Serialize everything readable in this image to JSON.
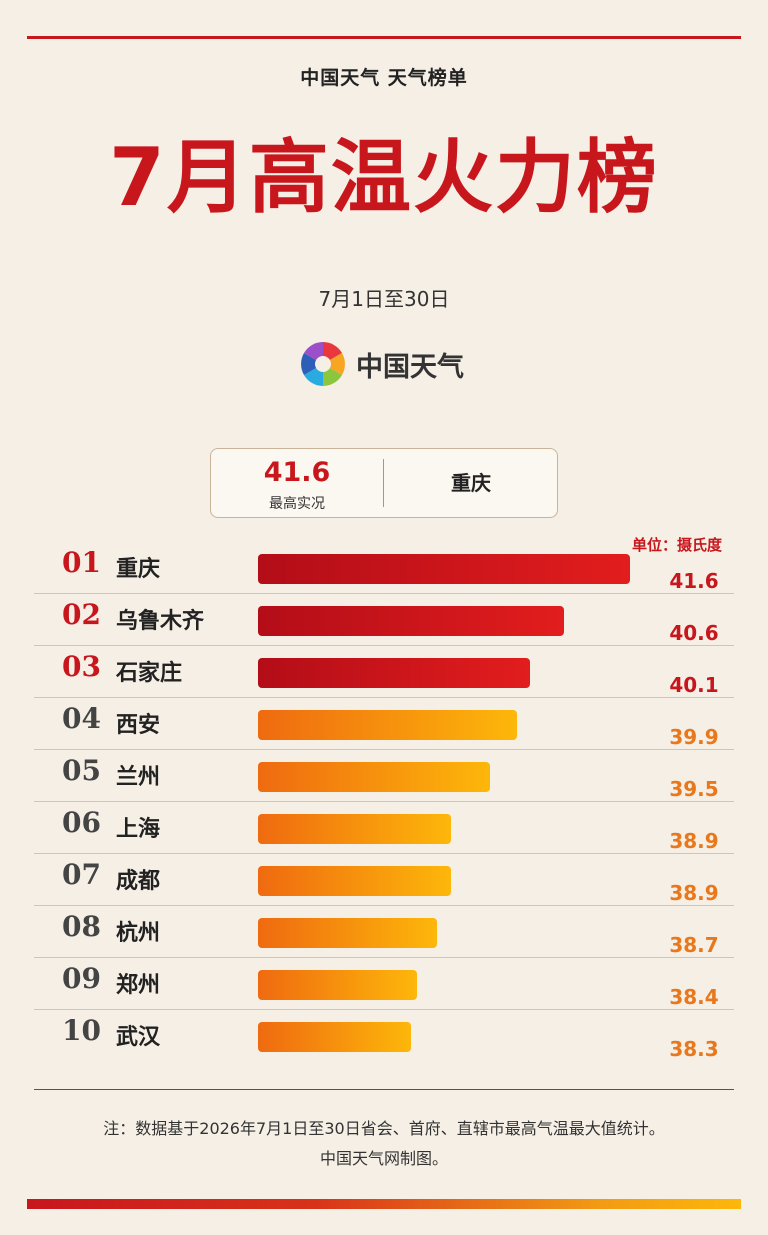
{
  "header": {
    "subtitle": "中国天气 天气榜单",
    "title": "7月高温火力榜",
    "date_range": "7月1日至30日",
    "logo_text": "中国天气"
  },
  "summary": {
    "value": "41.6",
    "label": "最高实况",
    "city": "重庆"
  },
  "unit_label": "单位：摄氏度",
  "chart_data": {
    "type": "bar",
    "orientation": "horizontal",
    "categories": [
      "重庆",
      "乌鲁木齐",
      "石家庄",
      "西安",
      "兰州",
      "上海",
      "成都",
      "杭州",
      "郑州",
      "武汉"
    ],
    "ranks": [
      "01",
      "02",
      "03",
      "04",
      "05",
      "06",
      "07",
      "08",
      "09",
      "10"
    ],
    "values": [
      41.6,
      40.6,
      40.1,
      39.9,
      39.5,
      38.9,
      38.9,
      38.7,
      38.4,
      38.3
    ],
    "value_labels": [
      "41.6",
      "40.6",
      "40.1",
      "39.9",
      "39.5",
      "38.9",
      "38.9",
      "38.7",
      "38.4",
      "38.3"
    ],
    "highlight_count": 3,
    "colors": {
      "top": "#c8161d",
      "rest": "#f28c12"
    }
  },
  "footer": {
    "note_line1": "注：数据基于2026年7月1日至30日省会、首府、直辖市最高气温最大值统计。",
    "note_line2": "中国天气网制图。"
  }
}
